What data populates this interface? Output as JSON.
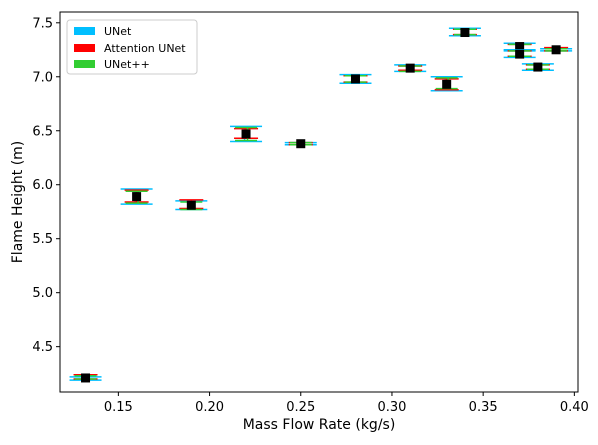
{
  "chart_data": {
    "type": "scatter",
    "title": "",
    "xlabel": "Mass Flow Rate (kg/s)",
    "ylabel": "Flame Height (m)",
    "xlim": [
      0.118,
      0.402
    ],
    "ylim": [
      4.08,
      7.6
    ],
    "xticks": [
      0.15,
      0.2,
      0.25,
      0.3,
      0.35,
      0.4
    ],
    "xtick_labels": [
      "0.15",
      "0.20",
      "0.25",
      "0.30",
      "0.35",
      "0.40"
    ],
    "yticks": [
      4.5,
      5.0,
      5.5,
      6.0,
      6.5,
      7.0,
      7.5
    ],
    "ytick_labels": [
      "4.5",
      "5.0",
      "5.5",
      "6.0",
      "6.5",
      "7.0",
      "7.5"
    ],
    "grid": false,
    "legend_position": "top-left",
    "series": [
      {
        "name": "UNet",
        "color": "#00bfff"
      },
      {
        "name": "Attention UNet",
        "color": "#ff0000"
      },
      {
        "name": "UNet++",
        "color": "#32cd32"
      }
    ],
    "points": [
      {
        "x": 0.132,
        "y": 4.21,
        "unet": [
          4.19,
          4.22
        ],
        "attn": [
          4.2,
          4.24
        ],
        "unetpp": [
          4.2,
          4.23
        ]
      },
      {
        "x": 0.16,
        "y": 5.89,
        "unet": [
          5.82,
          5.96
        ],
        "attn": [
          5.84,
          5.95
        ],
        "unetpp": [
          5.83,
          5.94
        ]
      },
      {
        "x": 0.19,
        "y": 5.81,
        "unet": [
          5.77,
          5.85
        ],
        "attn": [
          5.78,
          5.86
        ],
        "unetpp": [
          5.77,
          5.84
        ]
      },
      {
        "x": 0.22,
        "y": 6.47,
        "unet": [
          6.4,
          6.54
        ],
        "attn": [
          6.43,
          6.52
        ],
        "unetpp": [
          6.41,
          6.53
        ]
      },
      {
        "x": 0.25,
        "y": 6.38,
        "unet": [
          6.37,
          6.39
        ],
        "attn": [
          6.37,
          6.39
        ],
        "unetpp": [
          6.37,
          6.39
        ]
      },
      {
        "x": 0.28,
        "y": 6.98,
        "unet": [
          6.94,
          7.02
        ],
        "attn": [
          6.95,
          7.01
        ],
        "unetpp": [
          6.95,
          7.01
        ]
      },
      {
        "x": 0.31,
        "y": 7.08,
        "unet": [
          7.05,
          7.11
        ],
        "attn": [
          7.06,
          7.1
        ],
        "unetpp": [
          7.05,
          7.1
        ]
      },
      {
        "x": 0.33,
        "y": 6.93,
        "unet": [
          6.87,
          7.0
        ],
        "attn": [
          6.88,
          6.98
        ],
        "unetpp": [
          6.89,
          6.99
        ]
      },
      {
        "x": 0.34,
        "y": 7.41,
        "unet": [
          7.38,
          7.45
        ],
        "attn": [
          7.39,
          7.44
        ],
        "unetpp": [
          7.39,
          7.44
        ]
      },
      {
        "x": 0.37,
        "y": 7.28,
        "unet": [
          7.24,
          7.31
        ],
        "attn": [
          7.25,
          7.3
        ],
        "unetpp": [
          7.25,
          7.3
        ]
      },
      {
        "x": 0.37,
        "y": 7.21,
        "unet": [
          7.18,
          7.25
        ],
        "attn": [
          7.19,
          7.24
        ],
        "unetpp": [
          7.19,
          7.24
        ]
      },
      {
        "x": 0.38,
        "y": 7.09,
        "unet": [
          7.06,
          7.12
        ],
        "attn": [
          7.07,
          7.11
        ],
        "unetpp": [
          7.07,
          7.11
        ]
      },
      {
        "x": 0.39,
        "y": 7.25,
        "unet": [
          7.24,
          7.26
        ],
        "attn": [
          7.24,
          7.27
        ],
        "unetpp": [
          7.24,
          7.26
        ]
      }
    ]
  }
}
